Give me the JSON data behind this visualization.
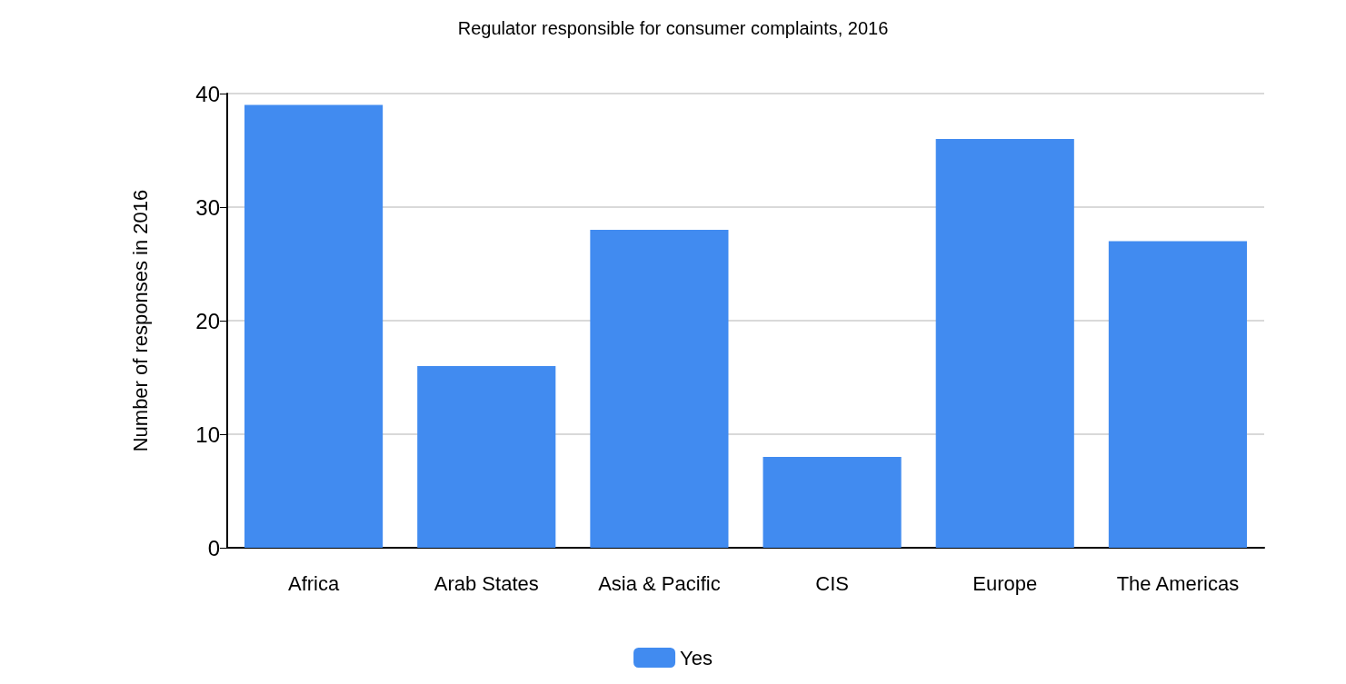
{
  "chart_data": {
    "type": "bar",
    "title": "Regulator responsible for consumer complaints, 2016",
    "ylabel": "Number of responses in 2016",
    "categories": [
      "Africa",
      "Arab States",
      "Asia & Pacific",
      "CIS",
      "Europe",
      "The Americas"
    ],
    "series": [
      {
        "name": "Yes",
        "color": "#418bf0",
        "values": [
          39,
          16,
          28,
          8,
          36,
          27
        ]
      }
    ],
    "ylim": [
      0,
      40
    ],
    "yticks": [
      0,
      10,
      20,
      30,
      40
    ],
    "grid": "y",
    "legend": "bottom"
  }
}
